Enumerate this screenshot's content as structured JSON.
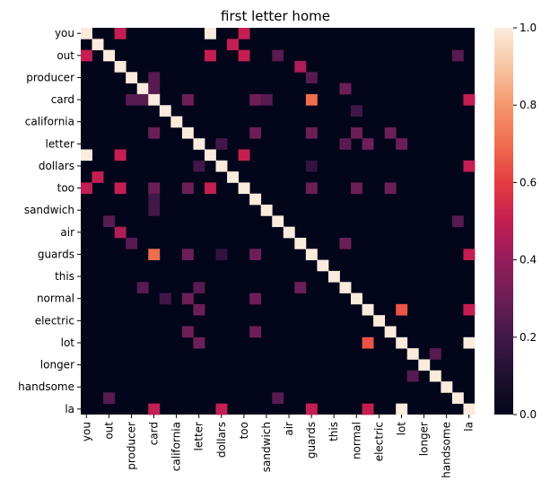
{
  "chart_data": {
    "type": "heatmap",
    "title": "first letter home",
    "xlabel": "",
    "ylabel": "",
    "labels": [
      "you",
      "",
      "out",
      "",
      "producer",
      "",
      "card",
      "",
      "california",
      "",
      "letter",
      "",
      "dollars",
      "",
      "too",
      "",
      "sandwich",
      "",
      "air",
      "",
      "guards",
      "",
      "this",
      "",
      "normal",
      "",
      "electric",
      "",
      "lot",
      "",
      "longer",
      "",
      "handsome",
      "",
      "la"
    ],
    "tick_labels": [
      "you",
      "out",
      "producer",
      "card",
      "california",
      "letter",
      "dollars",
      "too",
      "sandwich",
      "air",
      "guards",
      "this",
      "normal",
      "electric",
      "lot",
      "longer",
      "handsome",
      "la"
    ],
    "colorbar": {
      "min": 0.0,
      "max": 1.0,
      "ticks": [
        "0.0",
        "0.2",
        "0.4",
        "0.6",
        "0.8",
        "1.0"
      ]
    },
    "cells": [
      [
        0,
        0,
        1.0
      ],
      [
        0,
        3,
        0.5
      ],
      [
        0,
        11,
        1.0
      ],
      [
        0,
        14,
        0.5
      ],
      [
        1,
        1,
        1.0
      ],
      [
        1,
        13,
        0.5
      ],
      [
        2,
        0,
        0.5
      ],
      [
        2,
        2,
        1.0
      ],
      [
        2,
        11,
        0.5
      ],
      [
        2,
        14,
        0.5
      ],
      [
        2,
        17,
        0.25
      ],
      [
        2,
        33,
        0.25
      ],
      [
        3,
        3,
        1.0
      ],
      [
        3,
        19,
        0.45
      ],
      [
        4,
        4,
        1.0
      ],
      [
        4,
        6,
        0.25
      ],
      [
        4,
        20,
        0.25
      ],
      [
        5,
        5,
        1.0
      ],
      [
        5,
        6,
        0.25
      ],
      [
        5,
        23,
        0.3
      ],
      [
        6,
        4,
        0.25
      ],
      [
        6,
        5,
        0.25
      ],
      [
        6,
        6,
        1.0
      ],
      [
        6,
        9,
        0.3
      ],
      [
        6,
        15,
        0.3
      ],
      [
        6,
        16,
        0.25
      ],
      [
        6,
        20,
        0.7
      ],
      [
        6,
        34,
        0.5
      ],
      [
        7,
        7,
        1.0
      ],
      [
        7,
        24,
        0.2
      ],
      [
        8,
        8,
        1.0
      ],
      [
        9,
        6,
        0.3
      ],
      [
        9,
        9,
        1.0
      ],
      [
        9,
        15,
        0.3
      ],
      [
        9,
        20,
        0.3
      ],
      [
        9,
        24,
        0.3
      ],
      [
        9,
        27,
        0.3
      ],
      [
        10,
        10,
        1.0
      ],
      [
        10,
        12,
        0.2
      ],
      [
        10,
        23,
        0.25
      ],
      [
        10,
        25,
        0.3
      ],
      [
        10,
        28,
        0.3
      ],
      [
        11,
        0,
        1.0
      ],
      [
        11,
        3,
        0.5
      ],
      [
        11,
        11,
        1.0
      ],
      [
        11,
        14,
        0.5
      ],
      [
        12,
        10,
        0.2
      ],
      [
        12,
        12,
        1.0
      ],
      [
        12,
        20,
        0.15
      ],
      [
        12,
        34,
        0.5
      ],
      [
        13,
        1,
        0.5
      ],
      [
        13,
        13,
        1.0
      ],
      [
        14,
        0,
        0.5
      ],
      [
        14,
        3,
        0.5
      ],
      [
        14,
        6,
        0.3
      ],
      [
        14,
        9,
        0.3
      ],
      [
        14,
        11,
        0.5
      ],
      [
        14,
        14,
        1.0
      ],
      [
        14,
        20,
        0.3
      ],
      [
        14,
        24,
        0.3
      ],
      [
        14,
        27,
        0.3
      ],
      [
        15,
        6,
        0.2
      ],
      [
        15,
        15,
        1.0
      ],
      [
        16,
        6,
        0.2
      ],
      [
        16,
        16,
        1.0
      ],
      [
        17,
        2,
        0.25
      ],
      [
        17,
        17,
        1.0
      ],
      [
        17,
        33,
        0.25
      ],
      [
        18,
        3,
        0.45
      ],
      [
        18,
        18,
        1.0
      ],
      [
        19,
        4,
        0.25
      ],
      [
        19,
        19,
        1.0
      ],
      [
        19,
        23,
        0.3
      ],
      [
        20,
        6,
        0.7
      ],
      [
        20,
        9,
        0.3
      ],
      [
        20,
        12,
        0.15
      ],
      [
        20,
        15,
        0.3
      ],
      [
        20,
        20,
        1.0
      ],
      [
        20,
        34,
        0.5
      ],
      [
        21,
        21,
        1.0
      ],
      [
        22,
        22,
        1.0
      ],
      [
        23,
        5,
        0.25
      ],
      [
        23,
        10,
        0.25
      ],
      [
        23,
        19,
        0.3
      ],
      [
        23,
        23,
        1.0
      ],
      [
        24,
        7,
        0.2
      ],
      [
        24,
        9,
        0.3
      ],
      [
        24,
        15,
        0.3
      ],
      [
        24,
        24,
        1.0
      ],
      [
        25,
        10,
        0.3
      ],
      [
        25,
        25,
        1.0
      ],
      [
        25,
        28,
        0.65
      ],
      [
        25,
        34,
        0.5
      ],
      [
        26,
        26,
        1.0
      ],
      [
        27,
        9,
        0.3
      ],
      [
        27,
        15,
        0.3
      ],
      [
        27,
        27,
        1.0
      ],
      [
        28,
        10,
        0.3
      ],
      [
        28,
        25,
        0.65
      ],
      [
        28,
        28,
        1.0
      ],
      [
        28,
        34,
        1.0
      ],
      [
        29,
        29,
        1.0
      ],
      [
        29,
        31,
        0.25
      ],
      [
        30,
        30,
        1.0
      ],
      [
        31,
        29,
        0.25
      ],
      [
        31,
        31,
        1.0
      ],
      [
        32,
        32,
        1.0
      ],
      [
        33,
        2,
        0.25
      ],
      [
        33,
        17,
        0.25
      ],
      [
        33,
        33,
        1.0
      ],
      [
        34,
        6,
        0.5
      ],
      [
        34,
        12,
        0.5
      ],
      [
        34,
        20,
        0.5
      ],
      [
        34,
        25,
        0.5
      ],
      [
        34,
        28,
        1.0
      ],
      [
        34,
        34,
        1.0
      ]
    ],
    "colormap": "rocket"
  }
}
